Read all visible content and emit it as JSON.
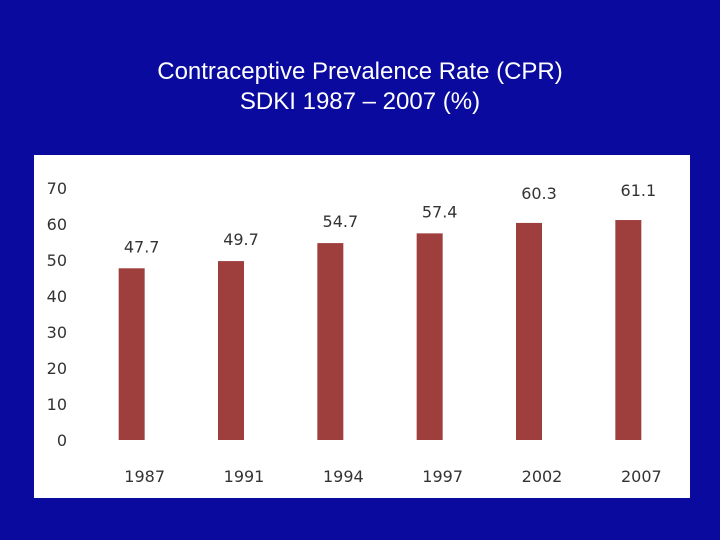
{
  "title": {
    "line1": "Contraceptive Prevalence Rate (CPR)",
    "line2": "SDKI 1987 – 2007 (%)"
  },
  "colors": {
    "background": "#0a0a9e",
    "panel": "#ffffff",
    "bar": "#9e3f3e",
    "text": "#ffffff",
    "axis_text": "#333333"
  },
  "chart_data": {
    "type": "bar",
    "title": "Contraceptive Prevalence Rate (CPR) SDKI 1987 – 2007 (%)",
    "categories": [
      "1987",
      "1991",
      "1994",
      "1997",
      "2002",
      "2007"
    ],
    "values": [
      47.7,
      49.7,
      54.7,
      57.4,
      60.3,
      61.1
    ],
    "data_labels": [
      "47.7",
      "49.7",
      "54.7",
      "57.4",
      "60.3",
      "61.1"
    ],
    "y_ticks": [
      "0",
      "10",
      "20",
      "30",
      "40",
      "50",
      "60",
      "70"
    ],
    "ylim": [
      0,
      70
    ],
    "xlabel": "",
    "ylabel": "",
    "grid": false,
    "legend": "none"
  }
}
